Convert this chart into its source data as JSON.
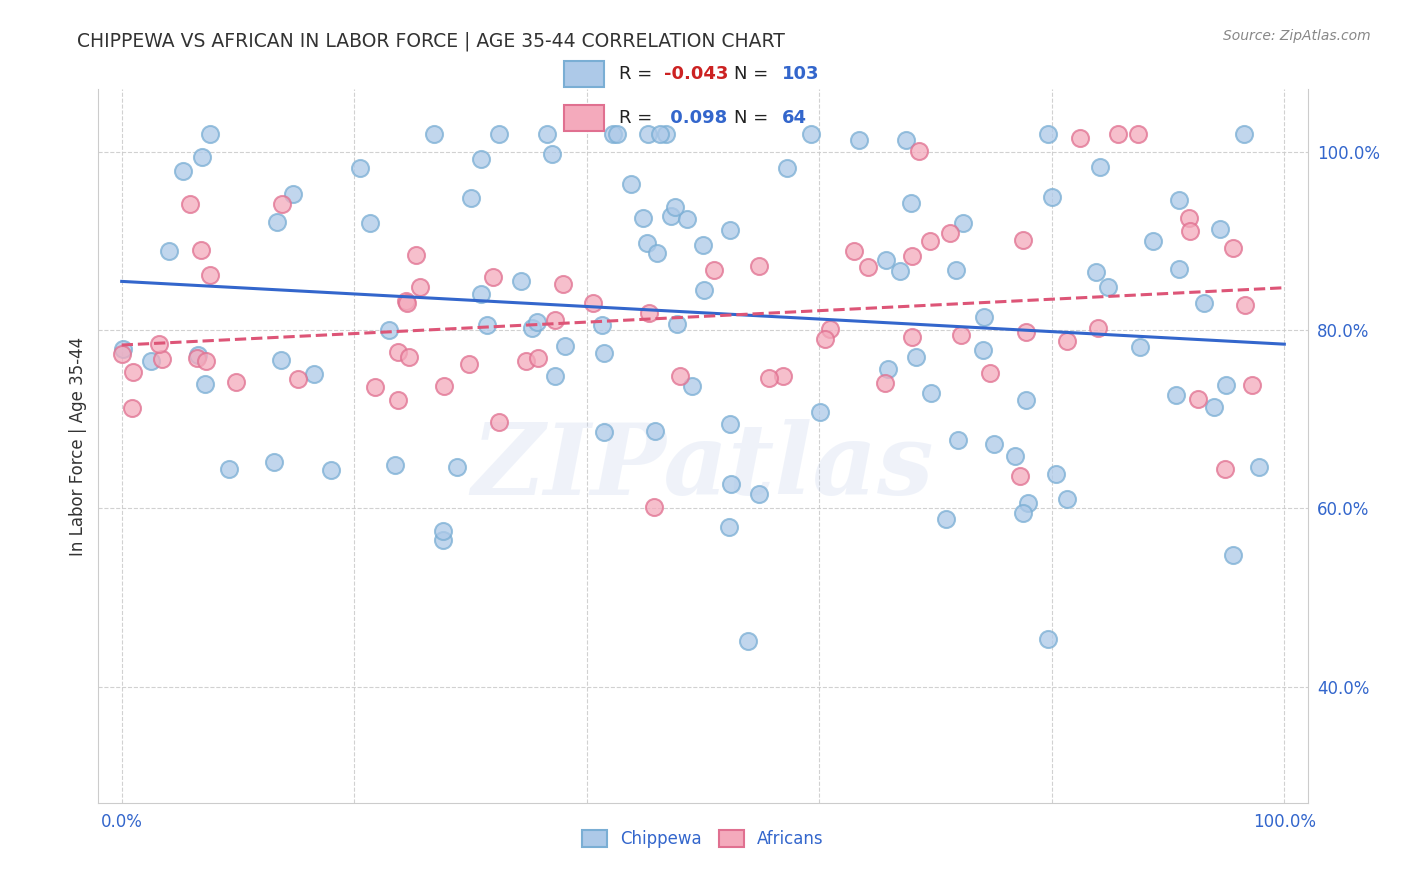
{
  "title": "CHIPPEWA VS AFRICAN IN LABOR FORCE | AGE 35-44 CORRELATION CHART",
  "source_text": "Source: ZipAtlas.com",
  "ylabel": "In Labor Force | Age 35-44",
  "xlim": [
    -0.02,
    1.02
  ],
  "ylim": [
    0.27,
    1.07
  ],
  "r_chippewa": -0.043,
  "n_chippewa": 103,
  "r_africans": 0.098,
  "n_africans": 64,
  "chippewa_color": "#adc9e8",
  "africans_color": "#f4aabc",
  "chippewa_edge_color": "#7aaed4",
  "africans_edge_color": "#e07090",
  "trend_chippewa_color": "#3366cc",
  "trend_africans_color": "#dd5577",
  "trend_africans_style": "--",
  "trend_chippewa_style": "-",
  "yticks": [
    0.4,
    0.6,
    0.8,
    1.0
  ],
  "ytick_labels": [
    "40.0%",
    "60.0%",
    "80.0%",
    "100.0%"
  ],
  "xticks": [
    0.0,
    0.2,
    0.4,
    0.6,
    0.8,
    1.0
  ],
  "xtick_labels": [
    "0.0%",
    "",
    "",
    "",
    "",
    "100.0%"
  ],
  "background_color": "#ffffff",
  "grid_color": "#cccccc",
  "title_color": "#333333",
  "ylabel_color": "#333333",
  "tick_label_color": "#3366cc",
  "source_color": "#888888",
  "legend_labels": [
    "Chippewa",
    "Africans"
  ],
  "watermark": "ZIPatlas"
}
